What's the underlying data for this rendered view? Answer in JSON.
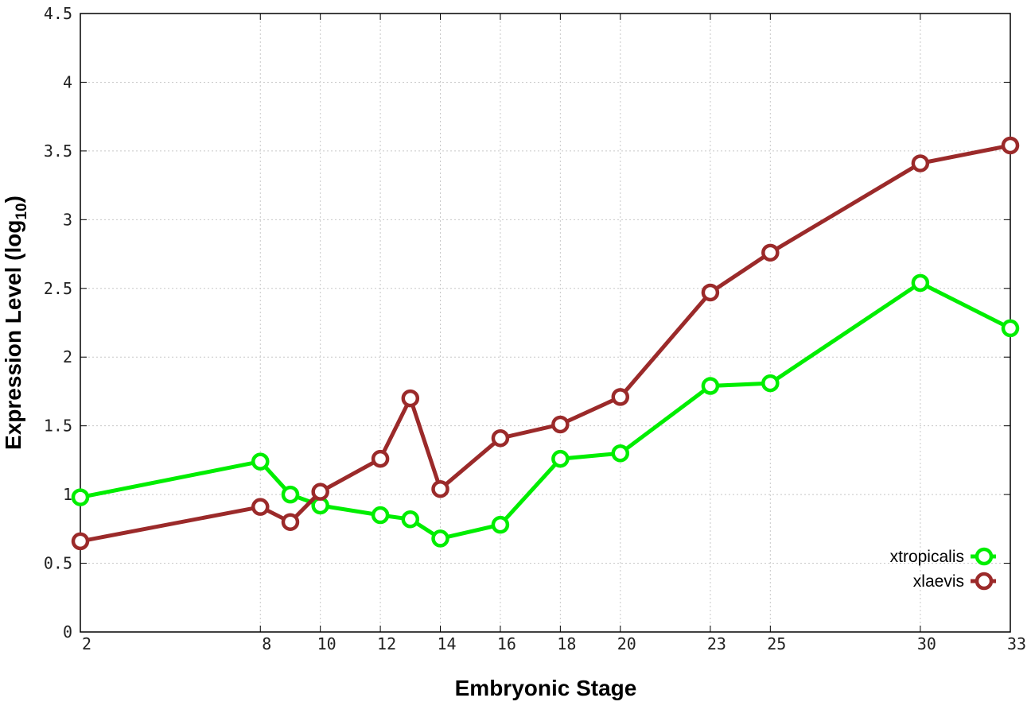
{
  "chart_data": {
    "type": "line",
    "xlabel": "Embryonic Stage",
    "ylabel_main": "Expression Level (log",
    "ylabel_sub": "10",
    "ylabel_close": ")",
    "x_ticks": [
      2,
      8,
      10,
      12,
      14,
      16,
      18,
      20,
      23,
      25,
      30,
      33
    ],
    "y_ticks": [
      "0",
      "0.5",
      "1",
      "1.5",
      "2",
      "2.5",
      "3",
      "3.5",
      "4",
      "4.5"
    ],
    "xlim": [
      2,
      33
    ],
    "ylim": [
      0,
      4.5
    ],
    "grid": true,
    "legend_position": "bottom-right",
    "x": [
      2,
      8,
      9,
      10,
      12,
      13,
      14,
      16,
      18,
      20,
      23,
      25,
      30,
      33
    ],
    "series": [
      {
        "name": "xtropicalis",
        "color": "#00ee00",
        "values": [
          0.98,
          1.24,
          1.0,
          0.92,
          0.85,
          0.82,
          0.68,
          0.78,
          1.26,
          1.3,
          1.79,
          1.81,
          2.54,
          2.21
        ]
      },
      {
        "name": "xlaevis",
        "color": "#9b2a2a",
        "values": [
          0.66,
          0.91,
          0.8,
          1.02,
          1.26,
          1.7,
          1.04,
          1.41,
          1.51,
          1.71,
          2.47,
          2.76,
          3.41,
          3.54
        ]
      }
    ]
  }
}
